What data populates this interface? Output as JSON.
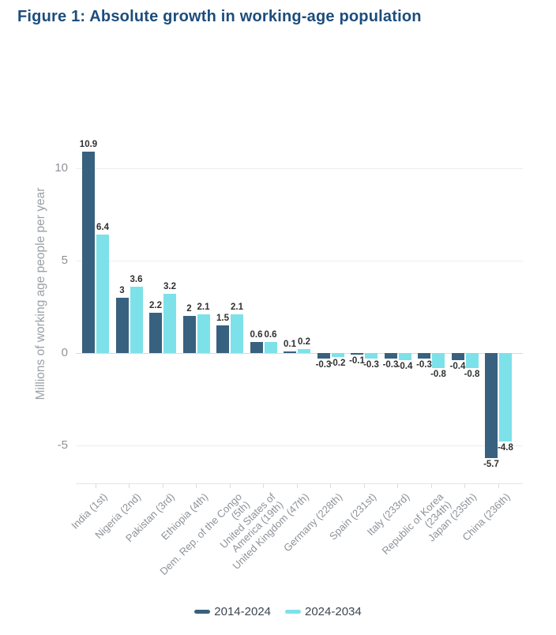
{
  "title": "Figure 1: Absolute growth in working-age population",
  "colors": {
    "title_text": "#1d4d7c",
    "series_dark": "#38617f",
    "series_cyan": "#7de1e9",
    "gridline": "#ededee",
    "zero_line": "#d8dbdd",
    "axis_text": "#8d9298",
    "value_label_text": "#303030"
  },
  "chart_data": {
    "type": "bar",
    "title": "Figure 1: Absolute growth in working-age population",
    "xlabel": "",
    "ylabel": "Millions of working age people per year",
    "ylim": [
      -7,
      11.2
    ],
    "grid": true,
    "legend_position": "bottom",
    "yticks": [
      {
        "value": 10,
        "label": "10"
      },
      {
        "value": 5,
        "label": "5"
      },
      {
        "value": 0,
        "label": "0"
      },
      {
        "value": -5,
        "label": "-5"
      }
    ],
    "categories": [
      "India (1st)",
      "Nigeria (2nd)",
      "Pakistan (3rd)",
      "Ethiopia (4th)",
      "Dem. Rep. of the Congo (5th)",
      "United States of America (19th)",
      "United Kingdom (47th)",
      "Germany (228th)",
      "Spain (231st)",
      "Italy (233rd)",
      "Republic of Korea (234th)",
      "Japan (235th)",
      "China (236th)"
    ],
    "category_lines": [
      [
        "India (1st)"
      ],
      [
        "Nigeria (2nd)"
      ],
      [
        "Pakistan (3rd)"
      ],
      [
        "Ethiopia (4th)"
      ],
      [
        "Dem. Rep. of the Congo",
        "(5th)"
      ],
      [
        "United States of",
        "America (19th)"
      ],
      [
        "United Kingdom (47th)"
      ],
      [
        "Germany (228th)"
      ],
      [
        "Spain (231st)"
      ],
      [
        "Italy (233rd)"
      ],
      [
        "Republic of Korea",
        "(234th)"
      ],
      [
        "Japan (235th)"
      ],
      [
        "China (236th)"
      ]
    ],
    "series": [
      {
        "name": "2014-2024",
        "color": "#38617f",
        "values": [
          10.9,
          3,
          2.2,
          2,
          1.5,
          0.6,
          0.1,
          -0.3,
          -0.1,
          -0.3,
          -0.3,
          -0.4,
          -5.7
        ],
        "labels": [
          "10.9",
          "3",
          "2.2",
          "2",
          "1.5",
          "0.6",
          "0.1",
          "-0.3",
          "-0.1",
          "-0.3",
          "-0.3",
          "-0.4",
          "-5.7"
        ]
      },
      {
        "name": "2024-2034",
        "color": "#7de1e9",
        "values": [
          6.4,
          3.6,
          3.2,
          2.1,
          2.1,
          0.6,
          0.2,
          -0.2,
          -0.3,
          -0.4,
          -0.8,
          -0.8,
          -4.8
        ],
        "labels": [
          "6.4",
          "3.6",
          "3.2",
          "2.1",
          "2.1",
          "0.6",
          "0.2",
          "-0.2",
          "-0.3",
          "-0.4",
          "-0.8",
          "-0.8",
          "-4.8"
        ]
      }
    ]
  },
  "legend": {
    "items": [
      {
        "label": "2014-2024",
        "color": "#38617f"
      },
      {
        "label": "2024-2034",
        "color": "#7de1e9"
      }
    ]
  }
}
